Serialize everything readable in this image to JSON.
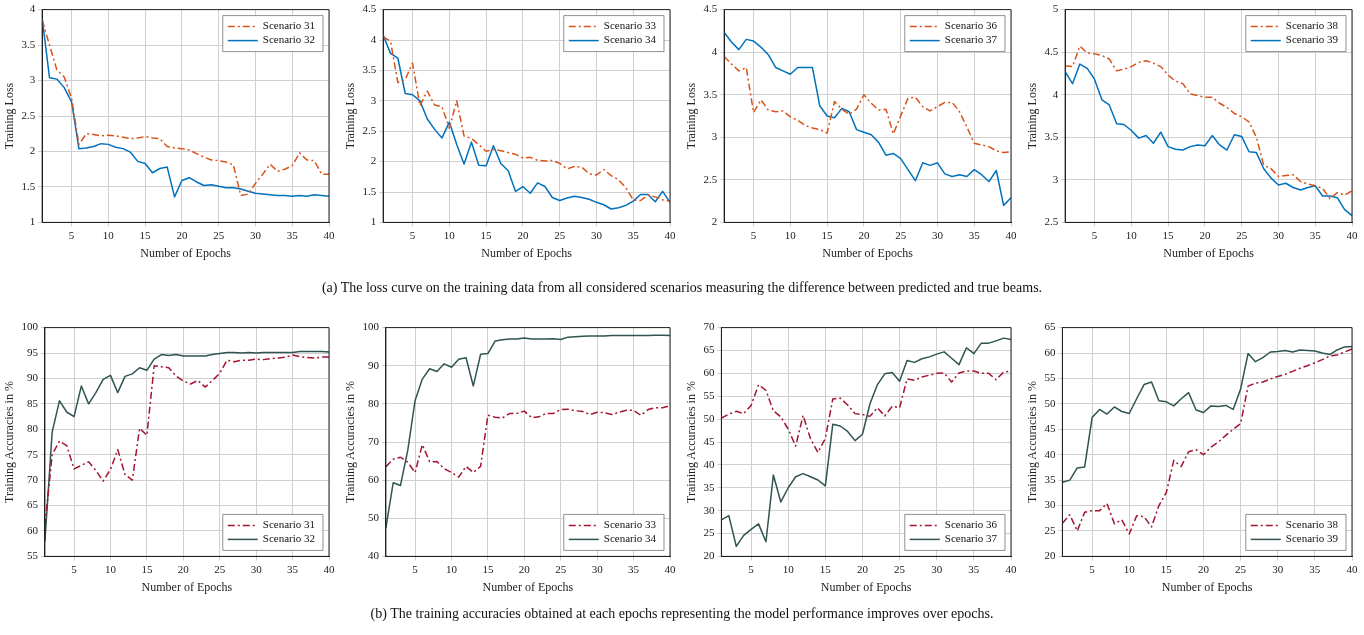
{
  "chart_data": [
    {
      "type": "line",
      "xlabel": "Number of Epochs",
      "ylabel": "Training Loss",
      "x": [
        1,
        2,
        3,
        4,
        5,
        6,
        7,
        8,
        9,
        10,
        11,
        12,
        13,
        14,
        15,
        16,
        17,
        18,
        19,
        20,
        21,
        22,
        23,
        24,
        25,
        26,
        27,
        28,
        29,
        30,
        31,
        32,
        33,
        34,
        35,
        36,
        37,
        38,
        39,
        40
      ],
      "xlim": [
        1,
        40
      ],
      "xticks": [
        5,
        10,
        15,
        20,
        25,
        30,
        35,
        40
      ],
      "ylim": [
        1,
        4
      ],
      "yticks": [
        1,
        1.5,
        2,
        2.5,
        3,
        3.5,
        4
      ],
      "grid": true,
      "legend": "top right",
      "annotations": [
        "(a) The loss curve on the training data from all considered scenarios measuring the difference between predicted and true beams."
      ],
      "series": [
        {
          "name": "Scenario 31",
          "color": "#d95319",
          "line_style": "dashed",
          "values": [
            3.85,
            3.5,
            3.15,
            3.05,
            2.75,
            2.1,
            2.25,
            2.24,
            2.22,
            2.23,
            2.22,
            2.2,
            2.18,
            2.19,
            2.21,
            2.19,
            2.18,
            2.07,
            2.05,
            2.04,
            2.02,
            1.97,
            1.92,
            1.88,
            1.87,
            1.85,
            1.81,
            1.38,
            1.4,
            1.55,
            1.68,
            1.82,
            1.72,
            1.75,
            1.8,
            1.98,
            1.88,
            1.87,
            1.68,
            1.68
          ]
        },
        {
          "name": "Scenario 32",
          "color": "#0072bd",
          "line_style": "solid",
          "values": [
            3.88,
            3.04,
            3.02,
            2.9,
            2.7,
            2.04,
            2.05,
            2.07,
            2.11,
            2.1,
            2.06,
            2.04,
            1.99,
            1.86,
            1.83,
            1.7,
            1.76,
            1.78,
            1.36,
            1.59,
            1.63,
            1.57,
            1.52,
            1.53,
            1.51,
            1.49,
            1.49,
            1.47,
            1.44,
            1.41,
            1.4,
            1.39,
            1.38,
            1.38,
            1.37,
            1.38,
            1.37,
            1.39,
            1.38,
            1.37
          ]
        }
      ]
    },
    {
      "type": "line",
      "xlabel": "Number of Epochs",
      "ylabel": "Training Loss",
      "x": [
        1,
        2,
        3,
        4,
        5,
        6,
        7,
        8,
        9,
        10,
        11,
        12,
        13,
        14,
        15,
        16,
        17,
        18,
        19,
        20,
        21,
        22,
        23,
        24,
        25,
        26,
        27,
        28,
        29,
        30,
        31,
        32,
        33,
        34,
        35,
        36,
        37,
        38,
        39,
        40
      ],
      "xlim": [
        1,
        40
      ],
      "xticks": [
        5,
        10,
        15,
        20,
        25,
        30,
        35,
        40
      ],
      "ylim": [
        1,
        4.5
      ],
      "yticks": [
        1,
        1.5,
        2,
        2.5,
        3,
        3.5,
        4,
        4.5
      ],
      "grid": true,
      "legend": "top right",
      "series": [
        {
          "name": "Scenario 33",
          "color": "#d95319",
          "line_style": "dashed",
          "values": [
            4.05,
            3.98,
            3.3,
            3.35,
            3.62,
            2.92,
            3.16,
            2.93,
            2.9,
            2.55,
            3.0,
            2.42,
            2.38,
            2.28,
            2.17,
            2.2,
            2.18,
            2.15,
            2.12,
            2.06,
            2.07,
            2.02,
            2.01,
            2.02,
            1.97,
            1.88,
            1.92,
            1.91,
            1.8,
            1.78,
            1.87,
            1.77,
            1.7,
            1.57,
            1.37,
            1.36,
            1.45,
            1.42,
            1.37,
            1.35
          ]
        },
        {
          "name": "Scenario 34",
          "color": "#0072bd",
          "line_style": "solid",
          "values": [
            4.08,
            3.78,
            3.7,
            3.12,
            3.1,
            3.0,
            2.7,
            2.53,
            2.39,
            2.65,
            2.28,
            1.96,
            2.32,
            1.94,
            1.93,
            2.26,
            1.97,
            1.85,
            1.51,
            1.59,
            1.48,
            1.65,
            1.59,
            1.41,
            1.36,
            1.4,
            1.43,
            1.41,
            1.38,
            1.33,
            1.29,
            1.22,
            1.24,
            1.28,
            1.35,
            1.46,
            1.46,
            1.34,
            1.51,
            1.33
          ]
        }
      ]
    },
    {
      "type": "line",
      "xlabel": "Number of Epochs",
      "ylabel": "Training Loss",
      "x": [
        1,
        2,
        3,
        4,
        5,
        6,
        7,
        8,
        9,
        10,
        11,
        12,
        13,
        14,
        15,
        16,
        17,
        18,
        19,
        20,
        21,
        22,
        23,
        24,
        25,
        26,
        27,
        28,
        29,
        30,
        31,
        32,
        33,
        34,
        35,
        36,
        37,
        38,
        39,
        40
      ],
      "xlim": [
        1,
        40
      ],
      "xticks": [
        5,
        10,
        15,
        20,
        25,
        30,
        35,
        40
      ],
      "ylim": [
        2,
        4.5
      ],
      "yticks": [
        2,
        2.5,
        3,
        3.5,
        4,
        4.5
      ],
      "grid": true,
      "legend": "top right",
      "series": [
        {
          "name": "Scenario 36",
          "color": "#d95319",
          "line_style": "dashed",
          "values": [
            3.95,
            3.86,
            3.78,
            3.82,
            3.29,
            3.44,
            3.32,
            3.3,
            3.31,
            3.24,
            3.2,
            3.14,
            3.11,
            3.09,
            3.05,
            3.42,
            3.33,
            3.27,
            3.33,
            3.5,
            3.4,
            3.32,
            3.33,
            3.04,
            3.25,
            3.46,
            3.47,
            3.36,
            3.31,
            3.36,
            3.41,
            3.41,
            3.3,
            3.12,
            2.93,
            2.91,
            2.89,
            2.84,
            2.82,
            2.83
          ]
        },
        {
          "name": "Scenario 37",
          "color": "#0072bd",
          "line_style": "solid",
          "values": [
            4.23,
            4.12,
            4.03,
            4.15,
            4.13,
            4.06,
            3.97,
            3.82,
            3.78,
            3.74,
            3.82,
            3.82,
            3.82,
            3.37,
            3.25,
            3.23,
            3.34,
            3.3,
            3.09,
            3.06,
            3.03,
            2.94,
            2.79,
            2.81,
            2.75,
            2.62,
            2.49,
            2.7,
            2.67,
            2.7,
            2.57,
            2.54,
            2.56,
            2.54,
            2.62,
            2.56,
            2.48,
            2.61,
            2.2,
            2.29
          ]
        }
      ]
    },
    {
      "type": "line",
      "xlabel": "Number of Epochs",
      "ylabel": "Training Loss",
      "x": [
        1,
        2,
        3,
        4,
        5,
        6,
        7,
        8,
        9,
        10,
        11,
        12,
        13,
        14,
        15,
        16,
        17,
        18,
        19,
        20,
        21,
        22,
        23,
        24,
        25,
        26,
        27,
        28,
        29,
        30,
        31,
        32,
        33,
        34,
        35,
        36,
        37,
        38,
        39,
        40
      ],
      "xlim": [
        1,
        40
      ],
      "xticks": [
        5,
        10,
        15,
        20,
        25,
        30,
        35,
        40
      ],
      "ylim": [
        2.5,
        5
      ],
      "yticks": [
        2.5,
        3,
        3.5,
        4,
        4.5,
        5
      ],
      "grid": true,
      "legend": "top right",
      "series": [
        {
          "name": "Scenario 38",
          "color": "#d95319",
          "line_style": "dashed",
          "values": [
            4.34,
            4.33,
            4.57,
            4.49,
            4.48,
            4.46,
            4.42,
            4.28,
            4.3,
            4.33,
            4.38,
            4.4,
            4.37,
            4.33,
            4.23,
            4.16,
            4.13,
            4.01,
            3.99,
            3.97,
            3.97,
            3.9,
            3.85,
            3.78,
            3.74,
            3.68,
            3.5,
            3.17,
            3.13,
            3.04,
            3.05,
            3.06,
            2.98,
            2.95,
            2.93,
            2.9,
            2.78,
            2.85,
            2.82,
            2.87
          ]
        },
        {
          "name": "Scenario 39",
          "color": "#0072bd",
          "line_style": "solid",
          "values": [
            4.27,
            4.13,
            4.36,
            4.31,
            4.18,
            3.94,
            3.88,
            3.66,
            3.65,
            3.58,
            3.49,
            3.52,
            3.43,
            3.56,
            3.39,
            3.36,
            3.35,
            3.39,
            3.41,
            3.4,
            3.52,
            3.41,
            3.35,
            3.53,
            3.51,
            3.33,
            3.32,
            3.13,
            3.02,
            2.94,
            2.96,
            2.91,
            2.88,
            2.91,
            2.93,
            2.81,
            2.81,
            2.79,
            2.65,
            2.58
          ]
        }
      ]
    },
    {
      "type": "line",
      "xlabel": "Number of Epochs",
      "ylabel": "Training Accuracies in %",
      "x": [
        1,
        2,
        3,
        4,
        5,
        6,
        7,
        8,
        9,
        10,
        11,
        12,
        13,
        14,
        15,
        16,
        17,
        18,
        19,
        20,
        21,
        22,
        23,
        24,
        25,
        26,
        27,
        28,
        29,
        30,
        31,
        32,
        33,
        34,
        35,
        36,
        37,
        38,
        39,
        40
      ],
      "xlim": [
        1,
        40
      ],
      "xticks": [
        5,
        10,
        15,
        20,
        25,
        30,
        35,
        40
      ],
      "ylim": [
        55,
        100
      ],
      "yticks": [
        55,
        60,
        65,
        70,
        75,
        80,
        85,
        90,
        95,
        100
      ],
      "grid": true,
      "legend": "bottom right",
      "annotations": [
        "(b) The training accuracies obtained at each epochs representing the model performance improves over epochs."
      ],
      "series": [
        {
          "name": "Scenario 31",
          "color": "#a2142f",
          "line_style": "dashed",
          "values": [
            61,
            75,
            77.7,
            76.8,
            72.2,
            72.9,
            73.6,
            71.9,
            69.8,
            72.1,
            76,
            71.1,
            70,
            80.2,
            78.8,
            92.5,
            92.3,
            92.1,
            90.5,
            89.5,
            88.9,
            89.6,
            88.3,
            89.6,
            91,
            93.6,
            93.3,
            93.6,
            93.6,
            93.8,
            93.7,
            93.9,
            94,
            94.2,
            94.6,
            94.3,
            94.1,
            94,
            94.2,
            94.2
          ]
        },
        {
          "name": "Scenario 32",
          "color": "#2f5451",
          "line_style": "solid",
          "values": [
            58,
            79.5,
            85.6,
            83.4,
            82.5,
            88.5,
            85,
            87.2,
            89.8,
            90.6,
            87.2,
            90.4,
            90.9,
            92.1,
            91.6,
            93.8,
            94.7,
            94.5,
            94.7,
            94.4,
            94.4,
            94.4,
            94.4,
            94.7,
            94.9,
            95.1,
            95.1,
            95,
            95.1,
            95,
            95.1,
            95.1,
            95.1,
            95.1,
            95.1,
            95.3,
            95.3,
            95.3,
            95.3,
            95.2
          ]
        }
      ]
    },
    {
      "type": "line",
      "xlabel": "Number of Epochs",
      "ylabel": "Training Accuracies in %",
      "x": [
        1,
        2,
        3,
        4,
        5,
        6,
        7,
        8,
        9,
        10,
        11,
        12,
        13,
        14,
        15,
        16,
        17,
        18,
        19,
        20,
        21,
        22,
        23,
        24,
        25,
        26,
        27,
        28,
        29,
        30,
        31,
        32,
        33,
        34,
        35,
        36,
        37,
        38,
        39,
        40
      ],
      "xlim": [
        1,
        40
      ],
      "xticks": [
        5,
        10,
        15,
        20,
        25,
        30,
        35,
        40
      ],
      "ylim": [
        40,
        100
      ],
      "yticks": [
        40,
        50,
        60,
        70,
        80,
        90,
        100
      ],
      "grid": true,
      "legend": "bottom right",
      "series": [
        {
          "name": "Scenario 33",
          "color": "#a2142f",
          "line_style": "dashed",
          "values": [
            63.5,
            65.5,
            66,
            64.7,
            62,
            69.3,
            64.8,
            64.9,
            63,
            62,
            60.8,
            63.6,
            62,
            63.6,
            77,
            76.5,
            76.3,
            77.5,
            77.5,
            78.1,
            76.4,
            76.6,
            77.5,
            77.5,
            78.5,
            78.6,
            78.2,
            78,
            77.2,
            77.8,
            77.7,
            77.2,
            77.8,
            78.3,
            78.3,
            77,
            78.5,
            79,
            79,
            79.5
          ]
        },
        {
          "name": "Scenario 34",
          "color": "#2f5451",
          "line_style": "solid",
          "values": [
            47.5,
            59.3,
            58.6,
            67.8,
            80.8,
            86.5,
            89.2,
            88.5,
            90.5,
            89.6,
            91.7,
            92.1,
            84.7,
            93,
            93.2,
            96.5,
            96.8,
            97,
            97,
            97.3,
            97,
            97,
            97,
            97.1,
            96.9,
            97.5,
            97.6,
            97.7,
            97.8,
            97.8,
            97.8,
            97.9,
            97.9,
            97.9,
            97.9,
            97.9,
            97.9,
            98,
            98,
            97.9
          ]
        }
      ]
    },
    {
      "type": "line",
      "xlabel": "Number of Epochs",
      "ylabel": "Training Accuracies in %",
      "x": [
        1,
        2,
        3,
        4,
        5,
        6,
        7,
        8,
        9,
        10,
        11,
        12,
        13,
        14,
        15,
        16,
        17,
        18,
        19,
        20,
        21,
        22,
        23,
        24,
        25,
        26,
        27,
        28,
        29,
        30,
        31,
        32,
        33,
        34,
        35,
        36,
        37,
        38,
        39,
        40
      ],
      "xlim": [
        1,
        40
      ],
      "xticks": [
        5,
        10,
        15,
        20,
        25,
        30,
        35,
        40
      ],
      "ylim": [
        20,
        70
      ],
      "yticks": [
        20,
        25,
        30,
        35,
        40,
        45,
        50,
        55,
        60,
        65,
        70
      ],
      "grid": true,
      "legend": "bottom right",
      "series": [
        {
          "name": "Scenario 36",
          "color": "#a2142f",
          "line_style": "dashed",
          "values": [
            50.2,
            51.1,
            51.7,
            51.2,
            53,
            57.5,
            56.3,
            51.8,
            50.5,
            47.8,
            44.1,
            50.8,
            45.7,
            42.7,
            45.8,
            54.4,
            54.6,
            53.1,
            51.2,
            51,
            50.6,
            52.5,
            50.7,
            52.8,
            52.5,
            58.8,
            58.5,
            59.2,
            59.6,
            60,
            60.1,
            58.1,
            60.1,
            60.5,
            60.5,
            60,
            60,
            58.6,
            60.3,
            60.5
          ]
        },
        {
          "name": "Scenario 37",
          "color": "#2f5451",
          "line_style": "solid",
          "values": [
            28,
            28.9,
            22.2,
            24.6,
            25.9,
            27.1,
            23.2,
            37.8,
            31.9,
            35,
            37.4,
            38.1,
            37.4,
            36.7,
            35.4,
            48.9,
            48.5,
            47.3,
            45.3,
            46.7,
            53.3,
            57.5,
            59.9,
            60.2,
            58.3,
            62.8,
            62.4,
            63.2,
            63.6,
            64.2,
            64.7,
            63.3,
            61.9,
            65.6,
            64.3,
            66.6,
            66.6,
            67.1,
            67.7,
            67.4
          ]
        }
      ]
    },
    {
      "type": "line",
      "xlabel": "Number of Epochs",
      "ylabel": "Training Accuracies in %",
      "x": [
        1,
        2,
        3,
        4,
        5,
        6,
        7,
        8,
        9,
        10,
        11,
        12,
        13,
        14,
        15,
        16,
        17,
        18,
        19,
        20,
        21,
        22,
        23,
        24,
        25,
        26,
        27,
        28,
        29,
        30,
        31,
        32,
        33,
        34,
        35,
        36,
        37,
        38,
        39,
        40
      ],
      "xlim": [
        1,
        40
      ],
      "xticks": [
        5,
        10,
        15,
        20,
        25,
        30,
        35,
        40
      ],
      "ylim": [
        20,
        65
      ],
      "yticks": [
        20,
        25,
        30,
        35,
        40,
        45,
        50,
        55,
        60,
        65
      ],
      "grid": true,
      "legend": "bottom right",
      "series": [
        {
          "name": "Scenario 38",
          "color": "#a2142f",
          "line_style": "dashed",
          "values": [
            26.5,
            28.2,
            25,
            28.7,
            29,
            29,
            30.4,
            26.4,
            27.2,
            24.4,
            28,
            27.8,
            25.8,
            30,
            32.6,
            38.9,
            37.7,
            40.6,
            41,
            40,
            41.5,
            42.5,
            43.8,
            45,
            46.1,
            53.5,
            54.1,
            54.3,
            54.9,
            55.4,
            55.8,
            56.4,
            57,
            57.5,
            58.1,
            58.7,
            59.4,
            59.6,
            60.2,
            60.8
          ]
        },
        {
          "name": "Scenario 39",
          "color": "#2f5451",
          "line_style": "solid",
          "values": [
            34.6,
            35,
            37.4,
            37.6,
            47.3,
            48.9,
            48,
            49.4,
            48.5,
            48.1,
            51,
            53.8,
            54.3,
            50.6,
            50.4,
            49.6,
            51,
            52.2,
            48.8,
            48.3,
            49.6,
            49.5,
            49.7,
            48.9,
            52.9,
            59.9,
            58.3,
            59.1,
            60.2,
            60.3,
            60.5,
            60.2,
            60.6,
            60.5,
            60.4,
            60,
            59.7,
            60.6,
            61.2,
            61.3
          ]
        }
      ]
    }
  ]
}
